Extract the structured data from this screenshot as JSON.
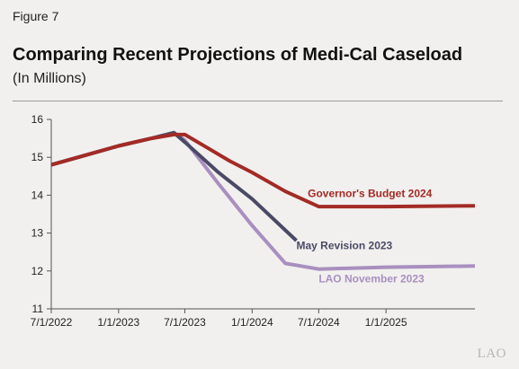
{
  "figure": {
    "label": "Figure 7",
    "title": "Comparing Recent Projections of Medi-Cal Caseload",
    "subtitle": "(In Millions)",
    "logo": "LAO"
  },
  "chart_data": {
    "type": "line",
    "title": "Comparing Recent Projections of Medi-Cal Caseload",
    "subtitle": "(In Millions)",
    "xlabel": "",
    "ylabel": "",
    "ylim": [
      11,
      16
    ],
    "xlim": [
      "2022-07-01",
      "2025-09-01"
    ],
    "y_ticks": [
      11,
      12,
      13,
      14,
      15,
      16
    ],
    "x_ticks": [
      {
        "date": "2022-07-01",
        "label": "7/1/2022"
      },
      {
        "date": "2023-01-01",
        "label": "1/1/2023"
      },
      {
        "date": "2023-07-01",
        "label": "7/1/2023"
      },
      {
        "date": "2024-01-01",
        "label": "1/1/2024"
      },
      {
        "date": "2024-07-01",
        "label": "7/1/2024"
      },
      {
        "date": "2025-01-01",
        "label": "1/1/2025"
      }
    ],
    "grid": false,
    "series": [
      {
        "name": "LAO November 2023",
        "color": "#a98fbf",
        "points": [
          {
            "x": "2022-07-01",
            "y": 14.8
          },
          {
            "x": "2022-10-01",
            "y": 15.05
          },
          {
            "x": "2023-01-01",
            "y": 15.3
          },
          {
            "x": "2023-04-01",
            "y": 15.5
          },
          {
            "x": "2023-06-01",
            "y": 15.65
          },
          {
            "x": "2023-07-01",
            "y": 15.45
          },
          {
            "x": "2023-10-01",
            "y": 14.3
          },
          {
            "x": "2024-01-01",
            "y": 13.2
          },
          {
            "x": "2024-04-01",
            "y": 12.2
          },
          {
            "x": "2024-07-01",
            "y": 12.05
          },
          {
            "x": "2025-01-01",
            "y": 12.1
          },
          {
            "x": "2025-09-01",
            "y": 12.13
          }
        ]
      },
      {
        "name": "May Revision 2023",
        "color": "#4a4a66",
        "points": [
          {
            "x": "2022-07-01",
            "y": 14.8
          },
          {
            "x": "2022-10-01",
            "y": 15.05
          },
          {
            "x": "2023-01-01",
            "y": 15.3
          },
          {
            "x": "2023-04-01",
            "y": 15.5
          },
          {
            "x": "2023-06-01",
            "y": 15.65
          },
          {
            "x": "2023-07-01",
            "y": 15.4
          },
          {
            "x": "2023-10-01",
            "y": 14.6
          },
          {
            "x": "2024-01-01",
            "y": 13.9
          },
          {
            "x": "2024-05-01",
            "y": 12.8
          }
        ]
      },
      {
        "name": "Governor's Budget 2024",
        "color": "#a32a25",
        "points": [
          {
            "x": "2022-07-01",
            "y": 14.8
          },
          {
            "x": "2022-10-01",
            "y": 15.05
          },
          {
            "x": "2023-01-01",
            "y": 15.3
          },
          {
            "x": "2023-04-01",
            "y": 15.5
          },
          {
            "x": "2023-06-01",
            "y": 15.6
          },
          {
            "x": "2023-07-01",
            "y": 15.6
          },
          {
            "x": "2023-09-01",
            "y": 15.25
          },
          {
            "x": "2023-11-01",
            "y": 14.9
          },
          {
            "x": "2024-01-01",
            "y": 14.6
          },
          {
            "x": "2024-04-01",
            "y": 14.1
          },
          {
            "x": "2024-07-01",
            "y": 13.7
          },
          {
            "x": "2025-01-01",
            "y": 13.7
          },
          {
            "x": "2025-09-01",
            "y": 13.72
          }
        ]
      }
    ],
    "series_labels": [
      {
        "text": "Governor's Budget 2024",
        "series": 2,
        "at": {
          "x": "2024-06-01",
          "y": 13.95
        }
      },
      {
        "text": "May Revision 2023",
        "series": 1,
        "at": {
          "x": "2024-05-01",
          "y": 12.58
        }
      },
      {
        "text": "LAO November 2023",
        "series": 0,
        "at": {
          "x": "2024-07-01",
          "y": 11.7
        }
      }
    ]
  }
}
